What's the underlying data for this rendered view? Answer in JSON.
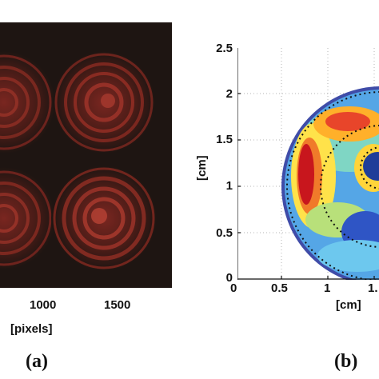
{
  "panel_a": {
    "x_ticks": [
      "1000",
      "1500"
    ],
    "x_label": "[pixels]",
    "letter": "(a)",
    "image": "speckle-rings-photo"
  },
  "panel_b": {
    "letter": "(b)",
    "x_label": "[cm]",
    "y_label": "[cm]",
    "y_ticks": [
      "2.5",
      "2",
      "1.5",
      "1",
      "0.5",
      "0"
    ],
    "x_ticks": [
      "0",
      "0.5",
      "1",
      "1."
    ],
    "image": "colormap-disk-plot"
  },
  "chart_data": {
    "type": "heatmap",
    "title": "",
    "xlabel": "[cm]",
    "ylabel": "[cm]",
    "xlim": [
      0,
      1.5
    ],
    "ylim": [
      0,
      2.5
    ],
    "x_tick_labels": [
      "0",
      "0.5",
      "1",
      "1."
    ],
    "y_tick_labels": [
      "0",
      "0.5",
      "1",
      "1.5",
      "2",
      "2.5"
    ],
    "grid": true,
    "colors": {
      "high": "#c8161d",
      "mid": "#ffe24a",
      "low": "#1f3d99",
      "edge": "#4a5cc0"
    }
  }
}
